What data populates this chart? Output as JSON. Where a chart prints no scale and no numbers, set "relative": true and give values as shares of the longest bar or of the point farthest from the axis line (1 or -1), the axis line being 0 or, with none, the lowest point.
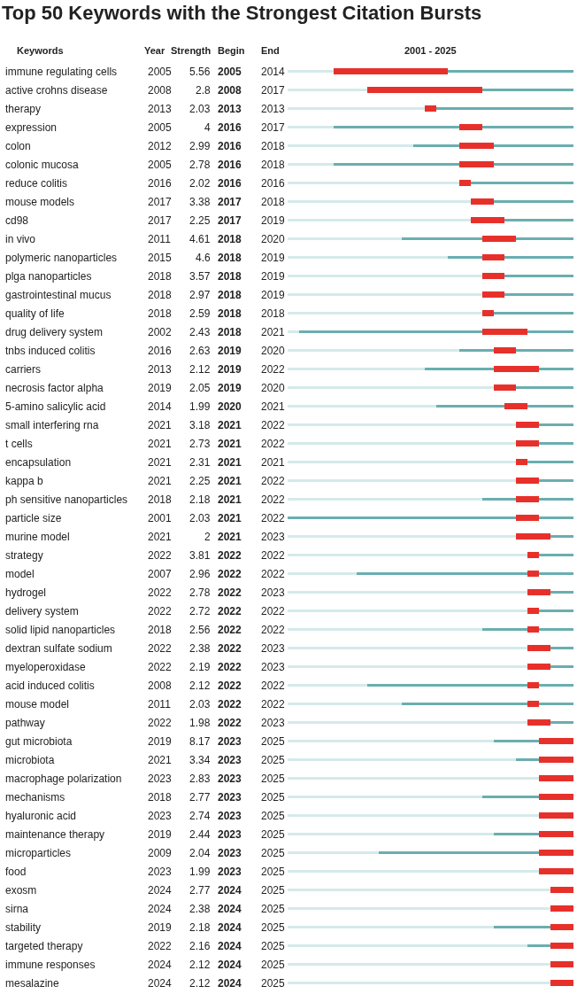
{
  "chart_data": {
    "type": "bar",
    "orientation": "horizontal",
    "title": "Top 50 Keywords with the Strongest Citation Bursts",
    "relative": true,
    "categories": [
      "immune regulating cells",
      "active crohns disease",
      "therapy",
      "expression",
      "colon",
      "colonic mucosa",
      "reduce colitis",
      "mouse models",
      "cd98",
      "in vivo",
      "polymeric nanoparticles",
      "plga nanoparticles",
      "gastrointestinal mucus",
      "quality of life",
      "drug delivery system",
      "tnbs induced colitis",
      "carriers",
      "necrosis factor alpha",
      "5-amino salicylic acid",
      "small interfering rna",
      "t cells",
      "encapsulation",
      "kappa b",
      "ph sensitive nanoparticles",
      "particle size",
      "murine model",
      "strategy",
      "model",
      "hydrogel",
      "delivery system",
      "solid lipid nanoparticles",
      "dextran sulfate sodium",
      "myeloperoxidase",
      "acid induced colitis",
      "mouse model",
      "pathway",
      "gut microbiota",
      "microbiota",
      "macrophage polarization",
      "mechanisms",
      "hyaluronic acid",
      "maintenance therapy",
      "microparticles",
      "food",
      "exosm",
      "sirna",
      "stability",
      "targeted therapy",
      "immune responses",
      "mesalazine"
    ],
    "stacked": true,
    "series": [
      {
        "color": "#d5eaea",
        "values": [
          0.16,
          0.28,
          0.48,
          0.16,
          0.44,
          0.16,
          0.6,
          0.64,
          0.64,
          0.4,
          0.56,
          0.68,
          0.68,
          0.68,
          0.04,
          0.6,
          0.48,
          0.72,
          0.52,
          0.8,
          0.8,
          0.8,
          0.8,
          0.68,
          0,
          0.8,
          0.84,
          0.24,
          0.84,
          0.84,
          0.68,
          0.84,
          0.84,
          0.28,
          0.4,
          0.84,
          0.72,
          0.8,
          0.88,
          0.68,
          0.88,
          0.72,
          0.32,
          0.88,
          0.92,
          0.92,
          0.72,
          0.84,
          0.92,
          0.92
        ]
      },
      {
        "color": "#6aaeb0",
        "values": [
          0,
          0,
          0,
          0.44,
          0.16,
          0.44,
          0,
          0,
          0,
          0.28,
          0.12,
          0,
          0,
          0,
          0.64,
          0.12,
          0.24,
          0,
          0.24,
          0,
          0,
          0,
          0,
          0.12,
          0.8,
          0,
          0,
          0.6,
          0,
          0,
          0.16,
          0,
          0,
          0.56,
          0.44,
          0,
          0.16,
          0.08,
          0,
          0.2,
          0,
          0.16,
          0.56,
          0,
          0,
          0,
          0.2,
          0.08,
          0,
          0
        ]
      },
      {
        "color": "#e8302b",
        "values": [
          0.4,
          0.4,
          0.04,
          0.08,
          0.12,
          0.12,
          0.04,
          0.08,
          0.12,
          0.12,
          0.08,
          0.08,
          0.08,
          0.04,
          0.16,
          0.08,
          0.16,
          0.08,
          0.08,
          0.08,
          0.08,
          0.04,
          0.08,
          0.08,
          0.08,
          0.12,
          0.04,
          0.04,
          0.08,
          0.04,
          0.04,
          0.08,
          0.08,
          0.04,
          0.04,
          0.08,
          0.12,
          0.12,
          0.12,
          0.12,
          0.12,
          0.12,
          0.12,
          0.12,
          0.08,
          0.08,
          0.08,
          0.08,
          0.08,
          0.08
        ]
      },
      {
        "color": "#6aaeb0",
        "values": [
          0.44,
          0.32,
          0.48,
          0.32,
          0.28,
          0.28,
          0.36,
          0.28,
          0.24,
          0.2,
          0.24,
          0.24,
          0.24,
          0.28,
          0.16,
          0.2,
          0.12,
          0.2,
          0.16,
          0.12,
          0.12,
          0.16,
          0.12,
          0.12,
          0.12,
          0.08,
          0.12,
          0.12,
          0.08,
          0.12,
          0.12,
          0.08,
          0.08,
          0.12,
          0.12,
          0.08,
          0,
          0,
          0,
          0,
          0,
          0,
          0,
          0,
          0,
          0,
          0,
          0,
          0,
          0
        ]
      }
    ],
    "annotations": [
      "Keywords",
      "Year",
      "Strength",
      "Begin",
      "End",
      "2001 - 2025",
      "2005",
      "5.56",
      "2005",
      "2014",
      "2008",
      "2.8",
      "2008",
      "2017",
      "2013",
      "2.03",
      "2013",
      "2013",
      "2005",
      "4",
      "2016",
      "2017",
      "2012",
      "2.99",
      "2016",
      "2018",
      "2005",
      "2.78",
      "2016",
      "2018",
      "2016",
      "2.02",
      "2016",
      "2016",
      "2017",
      "3.38",
      "2017",
      "2018",
      "2017",
      "2.25",
      "2017",
      "2019",
      "2011",
      "4.61",
      "2018",
      "2020",
      "2015",
      "4.6",
      "2018",
      "2019",
      "2018",
      "3.57",
      "2018",
      "2019",
      "2018",
      "2.97",
      "2018",
      "2019",
      "2018",
      "2.59",
      "2018",
      "2018",
      "2002",
      "2.43",
      "2018",
      "2021",
      "2016",
      "2.63",
      "2019",
      "2020",
      "2013",
      "2.12",
      "2019",
      "2022",
      "2019",
      "2.05",
      "2019",
      "2020",
      "2014",
      "1.99",
      "2020",
      "2021",
      "2021",
      "3.18",
      "2021",
      "2022",
      "2021",
      "2.73",
      "2021",
      "2022",
      "2021",
      "2.31",
      "2021",
      "2021",
      "2021",
      "2.25",
      "2021",
      "2022",
      "2018",
      "2.18",
      "2021",
      "2022",
      "2001",
      "2.03",
      "2021",
      "2022",
      "2021",
      "2",
      "2021",
      "2023",
      "2022",
      "3.81",
      "2022",
      "2022",
      "2007",
      "2.96",
      "2022",
      "2022",
      "2022",
      "2.78",
      "2022",
      "2023",
      "2022",
      "2.72",
      "2022",
      "2022",
      "2018",
      "2.56",
      "2022",
      "2022",
      "2022",
      "2.38",
      "2022",
      "2023",
      "2022",
      "2.19",
      "2022",
      "2023",
      "2008",
      "2.12",
      "2022",
      "2022",
      "2011",
      "2.03",
      "2022",
      "2022",
      "2022",
      "1.98",
      "2022",
      "2023",
      "2019",
      "8.17",
      "2023",
      "2025",
      "2021",
      "3.34",
      "2023",
      "2025",
      "2023",
      "2.83",
      "2023",
      "2025",
      "2018",
      "2.77",
      "2023",
      "2025",
      "2023",
      "2.74",
      "2023",
      "2025",
      "2019",
      "2.44",
      "2023",
      "2025",
      "2009",
      "2.04",
      "2023",
      "2025",
      "2023",
      "1.99",
      "2023",
      "2025",
      "2024",
      "2.77",
      "2024",
      "2025",
      "2024",
      "2.38",
      "2024",
      "2025",
      "2019",
      "2.18",
      "2024",
      "2025",
      "2022",
      "2.16",
      "2024",
      "2025",
      "2024",
      "2.12",
      "2024",
      "2025",
      "2024",
      "2.12",
      "2024",
      "2025"
    ]
  }
}
